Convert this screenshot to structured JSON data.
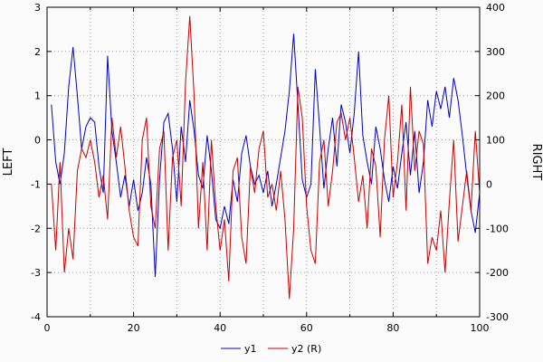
{
  "figure": {
    "background": "#fbfbfb"
  },
  "chart_data": {
    "type": "line",
    "title": "",
    "xlabel": "",
    "ylabel_left": "LEFT",
    "ylabel_right": "RIGHT",
    "x_range": [
      0,
      100
    ],
    "y_left_range": [
      -4,
      3
    ],
    "y_right_range": [
      -300,
      400
    ],
    "x_tick_values": [
      0,
      20,
      40,
      60,
      80,
      100
    ],
    "x_tick_labels": [
      "0",
      "20",
      "40",
      "60",
      "80",
      "100"
    ],
    "x_minor_step": 10,
    "left_tick_values": [
      3,
      2,
      1,
      0,
      -1,
      -2,
      -3,
      -4
    ],
    "left_tick_labels": [
      "3",
      "2",
      "1",
      "0",
      "-1",
      "-2",
      "-3",
      "-4"
    ],
    "right_tick_values": [
      400,
      300,
      200,
      100,
      0,
      -100,
      -200,
      -300
    ],
    "right_tick_labels": [
      "400",
      "300",
      "200",
      "100",
      "0",
      "-100",
      "-200",
      "-300"
    ],
    "grid": true,
    "grid_color": "#9a9a9a",
    "legend_position": "bottom-center",
    "x_start": 1,
    "x_step": 1,
    "series": [
      {
        "name": "y1",
        "axis": "left",
        "color": "#0000c8",
        "values": [
          0.8,
          -0.5,
          -1.0,
          -0.3,
          1.2,
          2.1,
          1.0,
          -0.2,
          0.3,
          0.5,
          0.4,
          -0.6,
          -1.2,
          1.9,
          0.2,
          -0.5,
          -1.3,
          -0.8,
          -1.5,
          -0.9,
          -1.6,
          -1.2,
          -0.4,
          -1.0,
          -3.1,
          -0.9,
          0.4,
          0.6,
          -0.2,
          -1.4,
          0.3,
          -0.5,
          0.9,
          0.2,
          -0.8,
          -1.1,
          0.1,
          -0.7,
          -1.8,
          -2.0,
          -1.5,
          -1.9,
          -0.9,
          -1.4,
          -0.3,
          0.1,
          -0.6,
          -1.0,
          -0.8,
          -1.2,
          -0.7,
          -1.5,
          -1.0,
          -0.4,
          0.2,
          1.1,
          2.4,
          0.8,
          -0.9,
          -1.3,
          -1.0,
          1.6,
          0.3,
          -1.1,
          -0.2,
          0.5,
          -0.6,
          0.8,
          0.4,
          -0.3,
          0.6,
          2.0,
          0.1,
          -0.5,
          -1.0,
          0.3,
          -0.2,
          -0.9,
          -1.4,
          -0.6,
          -1.1,
          -0.3,
          0.4,
          -0.8,
          0.2,
          -1.2,
          -0.5,
          0.9,
          0.3,
          1.1,
          0.7,
          1.2,
          0.5,
          1.4,
          0.9,
          0.1,
          -0.8,
          -1.6,
          -2.1,
          -1.2
        ]
      },
      {
        "name": "y2 (R)",
        "axis": "right",
        "color": "#c80000",
        "values": [
          0,
          -150,
          50,
          -200,
          -100,
          -170,
          30,
          80,
          60,
          100,
          50,
          -30,
          20,
          -80,
          150,
          60,
          130,
          40,
          -60,
          -120,
          -140,
          100,
          150,
          -50,
          -100,
          80,
          120,
          -150,
          60,
          100,
          -50,
          230,
          380,
          200,
          -100,
          50,
          -150,
          100,
          -50,
          -150,
          -80,
          -220,
          30,
          60,
          -120,
          -180,
          40,
          -20,
          80,
          120,
          -30,
          0,
          -60,
          30,
          -80,
          -260,
          -100,
          220,
          150,
          -50,
          -150,
          -180,
          50,
          100,
          -50,
          30,
          140,
          160,
          100,
          150,
          60,
          -40,
          20,
          -100,
          80,
          40,
          -120,
          100,
          200,
          -30,
          50,
          180,
          -60,
          220,
          30,
          120,
          90,
          -180,
          -120,
          -150,
          -60,
          -200,
          -40,
          100,
          -130,
          -50,
          30,
          -60,
          120,
          -20
        ]
      }
    ]
  }
}
